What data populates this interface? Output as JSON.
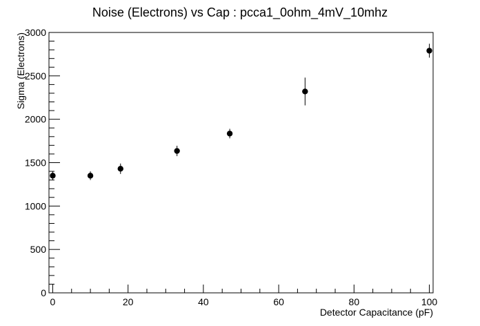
{
  "chart_data": {
    "type": "scatter",
    "title": "Noise (Electrons) vs Cap : pcca1_0ohm_4mV_10mhz",
    "xlabel": "Detector Capacitance (pF)",
    "ylabel": "Sigma (Electrons)",
    "xlim": [
      -1,
      101
    ],
    "ylim": [
      0,
      3000
    ],
    "xticks": [
      0,
      20,
      40,
      60,
      80,
      100
    ],
    "yticks": [
      0,
      500,
      1000,
      1500,
      2000,
      2500,
      3000
    ],
    "grid": false,
    "legend": "none",
    "marker_color": "#000000",
    "points": [
      {
        "x": 0,
        "y": 1350,
        "err": 50
      },
      {
        "x": 10,
        "y": 1350,
        "err": 50
      },
      {
        "x": 18,
        "y": 1430,
        "err": 60
      },
      {
        "x": 33,
        "y": 1635,
        "err": 60
      },
      {
        "x": 47,
        "y": 1835,
        "err": 55
      },
      {
        "x": 67,
        "y": 2320,
        "err": 160
      },
      {
        "x": 100,
        "y": 2790,
        "err": 80
      }
    ]
  }
}
